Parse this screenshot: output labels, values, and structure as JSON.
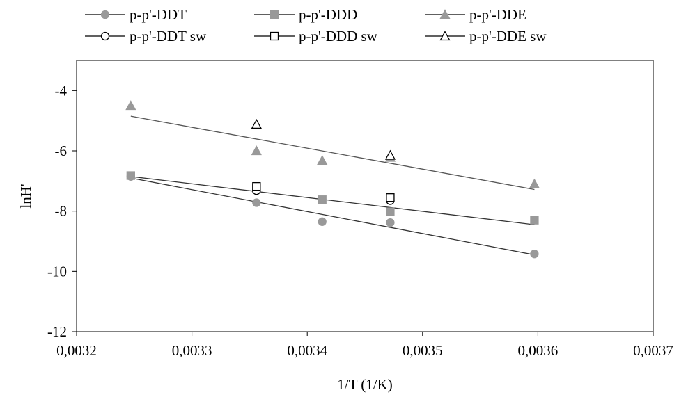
{
  "chart_data": {
    "type": "scatter",
    "xlabel": "1/T (1/K)",
    "ylabel": "lnH'",
    "xlim": [
      0.0032,
      0.0037
    ],
    "ylim": [
      -12,
      -3
    ],
    "xticks": [
      0.0032,
      0.0033,
      0.0034,
      0.0035,
      0.0036,
      0.0037
    ],
    "xtick_labels": [
      "0,0032",
      "0,0033",
      "0,0034",
      "0,0035",
      "0,0036",
      "0,0037"
    ],
    "yticks": [
      -12,
      -10,
      -8,
      -6,
      -4
    ],
    "ytick_labels": [
      "-12",
      "-10",
      "-8",
      "-6",
      "-4"
    ],
    "grid": false,
    "legend_position": "top",
    "series": [
      {
        "name": "p-p'-DDT",
        "marker": "circle",
        "filled": true,
        "color": "#999999",
        "points": [
          [
            0.003247,
            -6.85
          ],
          [
            0.003356,
            -7.72
          ],
          [
            0.003413,
            -8.35
          ],
          [
            0.003472,
            -8.38
          ],
          [
            0.003597,
            -9.42
          ]
        ]
      },
      {
        "name": "p-p'-DDD",
        "marker": "square",
        "filled": true,
        "color": "#999999",
        "points": [
          [
            0.003247,
            -6.82
          ],
          [
            0.003356,
            -7.25
          ],
          [
            0.003413,
            -7.62
          ],
          [
            0.003472,
            -8.02
          ],
          [
            0.003597,
            -8.3
          ]
        ]
      },
      {
        "name": "p-p'-DDE",
        "marker": "triangle",
        "filled": true,
        "color": "#999999",
        "points": [
          [
            0.003247,
            -4.5
          ],
          [
            0.003356,
            -6.0
          ],
          [
            0.003413,
            -6.32
          ],
          [
            0.003472,
            -6.22
          ],
          [
            0.003597,
            -7.1
          ]
        ]
      },
      {
        "name": "p-p'-DDT sw",
        "marker": "circle",
        "filled": false,
        "color": "#000000",
        "points": [
          [
            0.003356,
            -7.32
          ],
          [
            0.003472,
            -7.65
          ]
        ]
      },
      {
        "name": "p-p'-DDD sw",
        "marker": "square",
        "filled": false,
        "color": "#000000",
        "points": [
          [
            0.003356,
            -7.18
          ],
          [
            0.003472,
            -7.55
          ]
        ]
      },
      {
        "name": "p-p'-DDE sw",
        "marker": "triangle",
        "filled": false,
        "color": "#000000",
        "points": [
          [
            0.003356,
            -5.12
          ],
          [
            0.003472,
            -6.15
          ]
        ]
      }
    ],
    "trendlines": [
      {
        "x": [
          0.003247,
          0.003597
        ],
        "y": [
          -6.9,
          -9.45
        ],
        "color": "#333333"
      },
      {
        "x": [
          0.003247,
          0.003597
        ],
        "y": [
          -6.85,
          -8.45
        ],
        "color": "#333333"
      },
      {
        "x": [
          0.003247,
          0.003597
        ],
        "y": [
          -4.85,
          -7.28
        ],
        "color": "#555555"
      }
    ]
  }
}
